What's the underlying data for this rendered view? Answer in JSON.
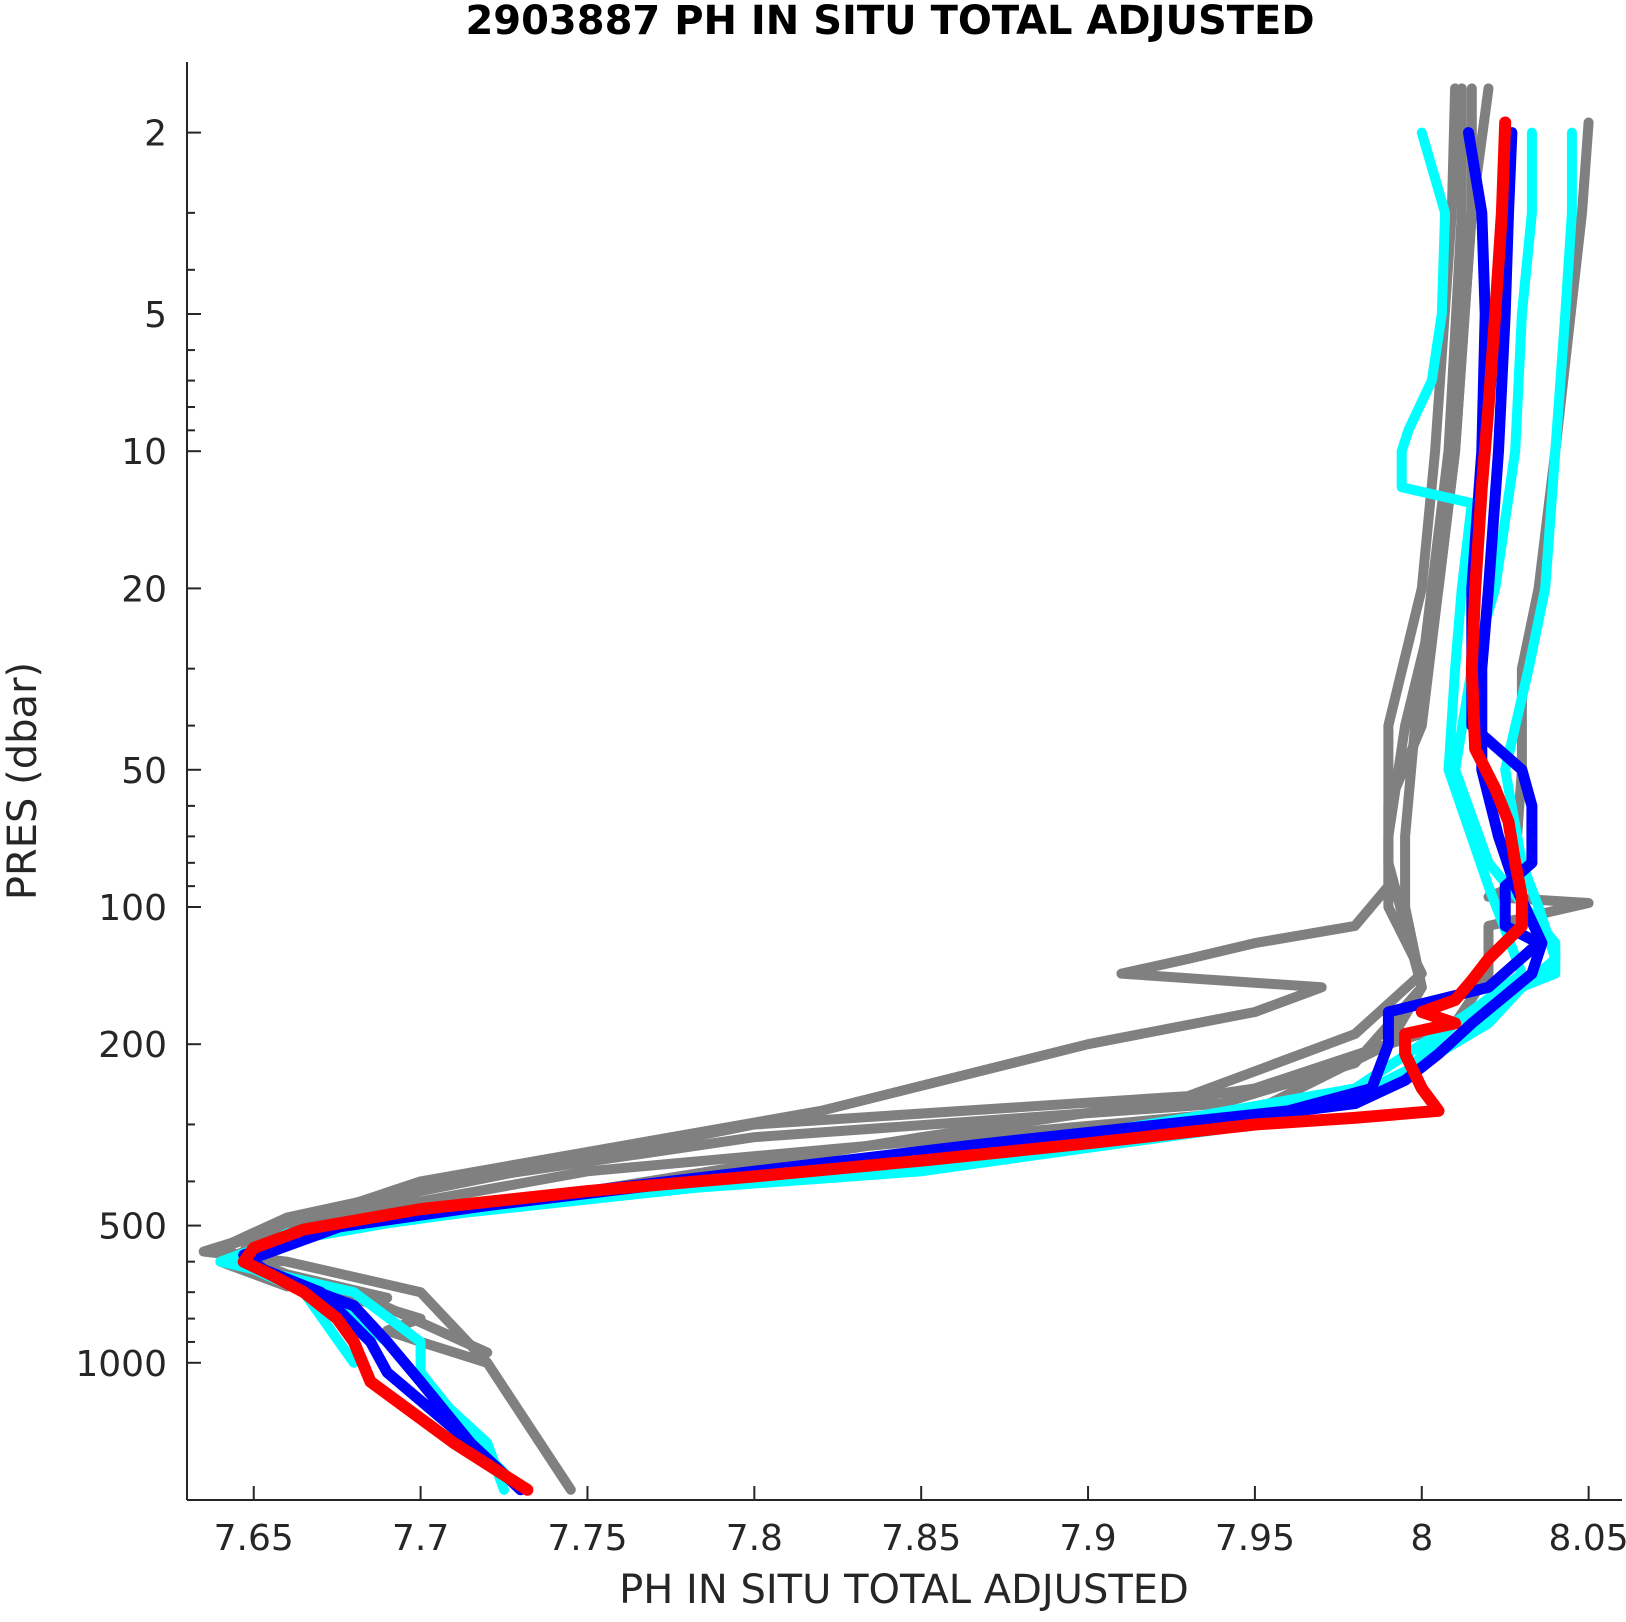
{
  "chart_data": {
    "type": "line",
    "title": "2903887  PH IN SITU TOTAL ADJUSTED",
    "xlabel": "PH IN SITU TOTAL ADJUSTED",
    "ylabel": "PRES (dbar)",
    "xlim": [
      7.63,
      8.06
    ],
    "ylim": [
      1.4,
      2000
    ],
    "yscale": "log",
    "yreversed": true,
    "grid": false,
    "x_ticks": [
      {
        "value": 7.65,
        "label": "7.65"
      },
      {
        "value": 7.7,
        "label": "7.7"
      },
      {
        "value": 7.75,
        "label": "7.75"
      },
      {
        "value": 7.8,
        "label": "7.8"
      },
      {
        "value": 7.85,
        "label": "7.85"
      },
      {
        "value": 7.9,
        "label": "7.9"
      },
      {
        "value": 7.95,
        "label": "7.95"
      },
      {
        "value": 8.0,
        "label": "8"
      },
      {
        "value": 8.05,
        "label": "8.05"
      }
    ],
    "y_ticks": [
      {
        "value": 2,
        "label": "2"
      },
      {
        "value": 5,
        "label": "5"
      },
      {
        "value": 10,
        "label": "10"
      },
      {
        "value": 20,
        "label": "20"
      },
      {
        "value": 50,
        "label": "50"
      },
      {
        "value": 100,
        "label": "100"
      },
      {
        "value": 200,
        "label": "200"
      },
      {
        "value": 500,
        "label": "500"
      },
      {
        "value": 1000,
        "label": "1000"
      }
    ],
    "y_minor_ticks": [
      3,
      4,
      6,
      7,
      8,
      9,
      30,
      40,
      60,
      70,
      80,
      90,
      300,
      400,
      600,
      700,
      800,
      900
    ],
    "series": [
      {
        "color": "#808080",
        "width": 10,
        "points": [
          [
            8.01,
            1.6
          ],
          [
            8.009,
            3
          ],
          [
            8.004,
            10
          ],
          [
            8.0,
            20
          ],
          [
            7.99,
            40
          ],
          [
            7.99,
            80
          ],
          [
            8.0,
            150
          ],
          [
            7.99,
            200
          ],
          [
            7.95,
            280
          ],
          [
            7.75,
            380
          ],
          [
            7.66,
            500
          ],
          [
            7.635,
            570
          ],
          [
            7.66,
            600
          ],
          [
            7.7,
            700
          ],
          [
            7.72,
            1000
          ],
          [
            7.745,
            1900
          ]
        ]
      },
      {
        "color": "#808080",
        "width": 10,
        "points": [
          [
            8.015,
            1.6
          ],
          [
            8.015,
            3
          ],
          [
            8.01,
            10
          ],
          [
            8.005,
            20
          ],
          [
            7.995,
            40
          ],
          [
            7.99,
            70
          ],
          [
            7.99,
            100
          ],
          [
            8.0,
            140
          ],
          [
            7.98,
            190
          ],
          [
            7.93,
            260
          ],
          [
            7.8,
            300
          ],
          [
            7.7,
            420
          ],
          [
            7.65,
            530
          ],
          [
            7.645,
            600
          ],
          [
            7.68,
            700
          ],
          [
            7.72,
            950
          ]
        ]
      },
      {
        "color": "#808080",
        "width": 10,
        "points": [
          [
            8.02,
            1.6
          ],
          [
            8.015,
            3
          ],
          [
            8.01,
            10
          ],
          [
            8.005,
            20
          ],
          [
            8.0,
            40
          ],
          [
            7.99,
            60
          ],
          [
            7.99,
            90
          ],
          [
            7.98,
            110
          ],
          [
            7.95,
            120
          ],
          [
            7.93,
            130
          ],
          [
            7.91,
            140
          ],
          [
            7.97,
            150
          ],
          [
            7.95,
            170
          ],
          [
            7.9,
            200
          ],
          [
            7.82,
            280
          ],
          [
            7.7,
            400
          ],
          [
            7.64,
            560
          ],
          [
            7.66,
            640
          ],
          [
            7.69,
            720
          ]
        ]
      },
      {
        "color": "#808080",
        "width": 10,
        "points": [
          [
            8.05,
            1.9
          ],
          [
            8.048,
            3
          ],
          [
            8.04,
            10
          ],
          [
            8.035,
            20
          ],
          [
            8.03,
            30
          ],
          [
            8.03,
            50
          ],
          [
            8.028,
            80
          ],
          [
            8.028,
            90
          ],
          [
            8.02,
            95
          ],
          [
            8.05,
            98
          ],
          [
            8.02,
            110
          ],
          [
            8.02,
            140
          ],
          [
            8.01,
            180
          ],
          [
            7.99,
            200
          ],
          [
            7.95,
            250
          ],
          [
            7.85,
            320
          ],
          [
            7.75,
            420
          ],
          [
            7.66,
            520
          ],
          [
            7.64,
            600
          ],
          [
            7.66,
            680
          ]
        ]
      },
      {
        "color": "#808080",
        "width": 10,
        "points": [
          [
            8.012,
            1.6
          ],
          [
            8.012,
            3
          ],
          [
            8.008,
            10
          ],
          [
            8.003,
            20
          ],
          [
            7.998,
            40
          ],
          [
            7.995,
            70
          ],
          [
            7.995,
            100
          ],
          [
            8.0,
            150
          ],
          [
            7.98,
            220
          ],
          [
            7.94,
            270
          ],
          [
            7.8,
            320
          ],
          [
            7.71,
            400
          ],
          [
            7.66,
            480
          ],
          [
            7.64,
            560
          ],
          [
            7.65,
            620
          ],
          [
            7.7,
            800
          ],
          [
            7.69,
            850
          ],
          [
            7.7,
            900
          ],
          [
            7.72,
            1000
          ]
        ]
      },
      {
        "color": "#00ffff",
        "width": 10,
        "points": [
          [
            8.0,
            2
          ],
          [
            8.007,
            3
          ],
          [
            8.006,
            5
          ],
          [
            8.003,
            7
          ],
          [
            7.996,
            9
          ],
          [
            7.994,
            10
          ],
          [
            7.994,
            12
          ],
          [
            8.015,
            13
          ],
          [
            8.012,
            20
          ],
          [
            8.01,
            30
          ],
          [
            8.008,
            50
          ],
          [
            8.02,
            90
          ],
          [
            8.03,
            140
          ],
          [
            8.01,
            180
          ],
          [
            7.99,
            250
          ],
          [
            7.95,
            300
          ],
          [
            7.85,
            380
          ],
          [
            7.75,
            430
          ],
          [
            7.66,
            530
          ],
          [
            7.64,
            600
          ],
          [
            7.68,
            700
          ],
          [
            7.7,
            900
          ],
          [
            7.7,
            1050
          ],
          [
            7.72,
            1600
          ],
          [
            7.73,
            1900
          ]
        ]
      },
      {
        "color": "#00ffff",
        "width": 10,
        "points": [
          [
            8.045,
            2
          ],
          [
            8.045,
            3
          ],
          [
            8.043,
            5
          ],
          [
            8.04,
            10
          ],
          [
            8.037,
            20
          ],
          [
            8.032,
            30
          ],
          [
            8.025,
            50
          ],
          [
            8.03,
            80
          ],
          [
            8.035,
            100
          ],
          [
            8.04,
            130
          ],
          [
            8.03,
            150
          ],
          [
            8.02,
            180
          ],
          [
            8.0,
            220
          ],
          [
            7.98,
            260
          ],
          [
            7.9,
            320
          ],
          [
            7.8,
            400
          ],
          [
            7.7,
            480
          ],
          [
            7.66,
            540
          ],
          [
            7.645,
            600
          ],
          [
            7.67,
            700
          ],
          [
            7.69,
            900
          ],
          [
            7.7,
            1100
          ],
          [
            7.72,
            1500
          ],
          [
            7.725,
            1900
          ]
        ]
      },
      {
        "color": "#00ffff",
        "width": 10,
        "points": [
          [
            8.033,
            2
          ],
          [
            8.033,
            3
          ],
          [
            8.03,
            5
          ],
          [
            8.028,
            10
          ],
          [
            8.022,
            20
          ],
          [
            8.015,
            30
          ],
          [
            8.01,
            50
          ],
          [
            8.02,
            80
          ],
          [
            8.04,
            120
          ],
          [
            8.04,
            140
          ],
          [
            8.02,
            160
          ],
          [
            8.0,
            200
          ],
          [
            7.98,
            250
          ],
          [
            7.93,
            290
          ],
          [
            7.85,
            360
          ],
          [
            7.75,
            430
          ],
          [
            7.66,
            520
          ],
          [
            7.645,
            600
          ],
          [
            7.665,
            700
          ],
          [
            7.68,
            1000
          ]
        ]
      },
      {
        "color": "#0000ff",
        "width": 11,
        "points": [
          [
            8.014,
            2
          ],
          [
            8.018,
            3
          ],
          [
            8.019,
            5
          ],
          [
            8.018,
            10
          ],
          [
            8.015,
            20
          ],
          [
            8.015,
            30
          ],
          [
            8.015,
            40
          ],
          [
            8.03,
            50
          ],
          [
            8.033,
            60
          ],
          [
            8.033,
            80
          ],
          [
            8.025,
            90
          ],
          [
            8.025,
            110
          ],
          [
            8.035,
            120
          ],
          [
            8.02,
            150
          ],
          [
            7.99,
            170
          ],
          [
            7.99,
            200
          ],
          [
            7.985,
            250
          ],
          [
            7.96,
            280
          ],
          [
            7.87,
            330
          ],
          [
            7.75,
            420
          ],
          [
            7.67,
            510
          ],
          [
            7.647,
            580
          ],
          [
            7.655,
            640
          ],
          [
            7.68,
            750
          ],
          [
            7.69,
            900
          ],
          [
            7.7,
            1100
          ],
          [
            7.715,
            1500
          ],
          [
            7.73,
            1900
          ]
        ]
      },
      {
        "color": "#0000ff",
        "width": 11,
        "points": [
          [
            8.027,
            2
          ],
          [
            8.026,
            3
          ],
          [
            8.025,
            5
          ],
          [
            8.023,
            10
          ],
          [
            8.02,
            20
          ],
          [
            8.018,
            30
          ],
          [
            8.018,
            50
          ],
          [
            8.023,
            70
          ],
          [
            8.028,
            90
          ],
          [
            8.036,
            120
          ],
          [
            8.033,
            140
          ],
          [
            8.015,
            180
          ],
          [
            8.005,
            210
          ],
          [
            7.995,
            240
          ],
          [
            7.98,
            270
          ],
          [
            7.9,
            320
          ],
          [
            7.78,
            400
          ],
          [
            7.68,
            490
          ],
          [
            7.647,
            600
          ],
          [
            7.67,
            700
          ],
          [
            7.685,
            900
          ],
          [
            7.69,
            1050
          ],
          [
            7.715,
            1500
          ]
        ]
      },
      {
        "color": "#ff0000",
        "width": 12,
        "points": [
          [
            8.025,
            1.9
          ],
          [
            8.024,
            3
          ],
          [
            8.022,
            5
          ],
          [
            8.02,
            8
          ],
          [
            8.018,
            12
          ],
          [
            8.016,
            20
          ],
          [
            8.015,
            30
          ],
          [
            8.016,
            45
          ],
          [
            8.022,
            55
          ],
          [
            8.026,
            65
          ],
          [
            8.028,
            80
          ],
          [
            8.03,
            95
          ],
          [
            8.03,
            110
          ],
          [
            8.02,
            130
          ],
          [
            8.015,
            145
          ],
          [
            8.01,
            160
          ],
          [
            8.0,
            170
          ],
          [
            8.01,
            180
          ],
          [
            7.995,
            190
          ],
          [
            7.995,
            210
          ],
          [
            8.0,
            250
          ],
          [
            8.005,
            280
          ],
          [
            7.98,
            290
          ],
          [
            7.95,
            300
          ],
          [
            7.9,
            330
          ],
          [
            7.85,
            360
          ],
          [
            7.8,
            390
          ],
          [
            7.75,
            420
          ],
          [
            7.7,
            460
          ],
          [
            7.665,
            510
          ],
          [
            7.65,
            560
          ],
          [
            7.647,
            600
          ],
          [
            7.655,
            640
          ],
          [
            7.665,
            700
          ],
          [
            7.675,
            800
          ],
          [
            7.68,
            900
          ],
          [
            7.685,
            1100
          ],
          [
            7.71,
            1500
          ],
          [
            7.732,
            1900
          ]
        ]
      }
    ]
  }
}
